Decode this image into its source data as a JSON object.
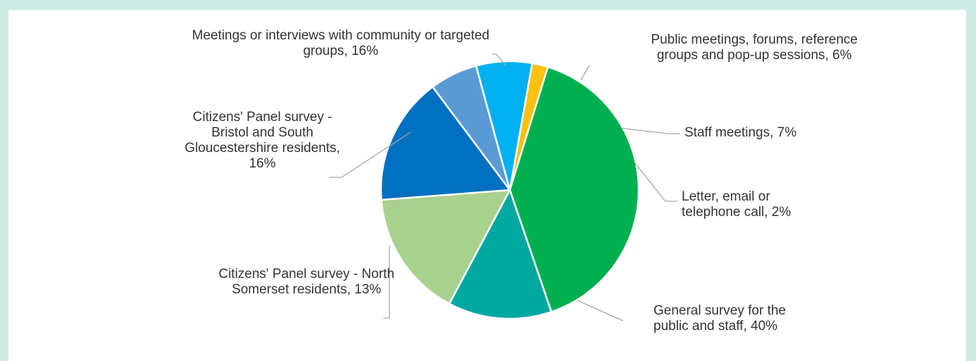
{
  "header": {
    "title_fragment": ""
  },
  "chart_data": {
    "type": "pie",
    "title": "",
    "slices": [
      {
        "label_lines": [
          "Letter, email or",
          "telephone call, 2%"
        ],
        "value": 2,
        "color": "#fcc010"
      },
      {
        "label_lines": [
          "General survey for the",
          "public and staff, 40%"
        ],
        "value": 40,
        "color": "#00b050"
      },
      {
        "label_lines": [
          "Citizens' Panel survey - North",
          "Somerset residents, 13%"
        ],
        "value": 13,
        "color": "#00a8a0"
      },
      {
        "label_lines": [
          "Citizens' Panel survey -",
          "Bristol and South",
          "Gloucestershire residents,",
          "16%"
        ],
        "value": 16,
        "color": "#a9d18e"
      },
      {
        "label_lines": [
          "Meetings or interviews with community or targeted",
          "groups, 16%"
        ],
        "value": 16,
        "color": "#0070c0"
      },
      {
        "label_lines": [
          "Public meetings, forums, reference",
          "groups and pop-up sessions, 6%"
        ],
        "value": 6,
        "color": "#5b9bd5"
      },
      {
        "label_lines": [
          "Staff meetings, 7%"
        ],
        "value": 7,
        "color": "#00b0f0"
      }
    ]
  }
}
